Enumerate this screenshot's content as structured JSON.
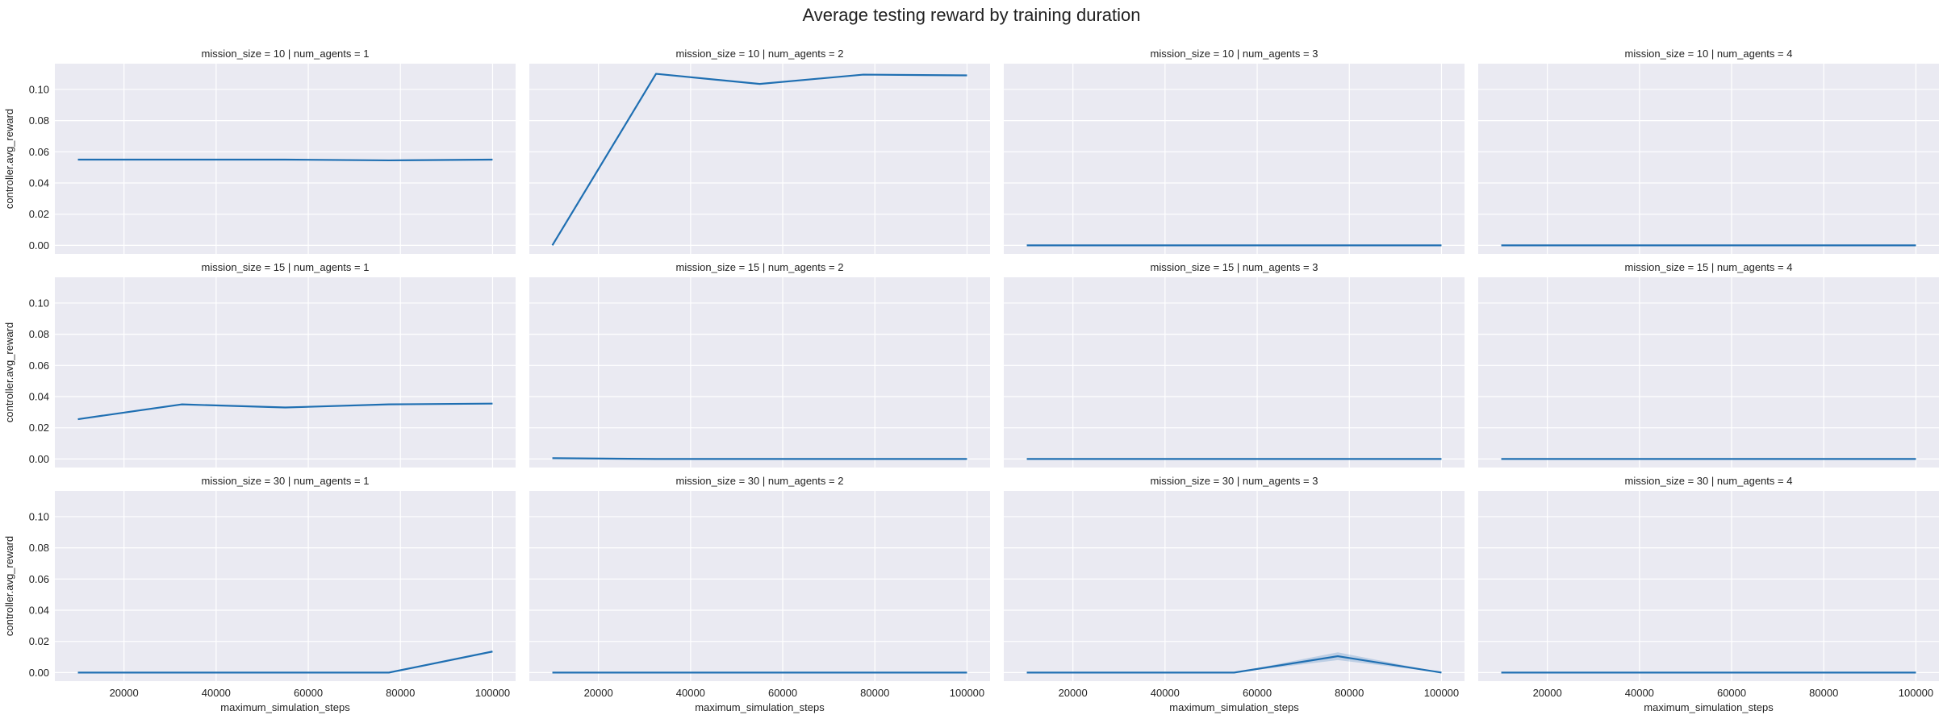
{
  "figure": {
    "title": "Average testing reward by training duration"
  },
  "chart_data": {
    "type": "line",
    "title": "Average testing reward by training duration",
    "xlabel": "maximum_simulation_steps",
    "ylabel": "controller.avg_reward",
    "xlim": [
      5000,
      105000
    ],
    "ylim": [
      -0.0055,
      0.1165
    ],
    "xticks": [
      20000,
      40000,
      60000,
      80000,
      100000
    ],
    "xtick_labels": [
      "20000",
      "40000",
      "60000",
      "80000",
      "100000"
    ],
    "yticks": [
      0.0,
      0.02,
      0.04,
      0.06,
      0.08,
      0.1
    ],
    "ytick_labels": [
      "0.00",
      "0.02",
      "0.04",
      "0.06",
      "0.08",
      "0.10"
    ],
    "grid": true,
    "line_color": "#1f6fb2",
    "background_color": "#eaeaf2",
    "x": [
      10000,
      32500,
      55000,
      77500,
      100000
    ],
    "rows": [
      {
        "mission_size": 10,
        "panels": [
          {
            "title": "mission_size = 10 | num_agents = 1",
            "values": [
              0.055,
              0.055,
              0.055,
              0.0545,
              0.055
            ]
          },
          {
            "title": "mission_size = 10 | num_agents = 2",
            "values": [
              0.0,
              0.11,
              0.1035,
              0.1095,
              0.109
            ]
          },
          {
            "title": "mission_size = 10 | num_agents = 3",
            "values": [
              0.0,
              0.0,
              0.0,
              0.0,
              0.0
            ]
          },
          {
            "title": "mission_size = 10 | num_agents = 4",
            "values": [
              0.0,
              0.0,
              0.0,
              0.0,
              0.0
            ]
          }
        ]
      },
      {
        "mission_size": 15,
        "panels": [
          {
            "title": "mission_size = 15 | num_agents = 1",
            "values": [
              0.0255,
              0.035,
              0.033,
              0.035,
              0.0355
            ]
          },
          {
            "title": "mission_size = 15 | num_agents = 2",
            "values": [
              0.0005,
              0.0,
              0.0,
              0.0,
              0.0
            ]
          },
          {
            "title": "mission_size = 15 | num_agents = 3",
            "values": [
              0.0,
              0.0,
              0.0,
              0.0,
              0.0
            ]
          },
          {
            "title": "mission_size = 15 | num_agents = 4",
            "values": [
              0.0,
              0.0,
              0.0,
              0.0,
              0.0
            ]
          }
        ]
      },
      {
        "mission_size": 30,
        "panels": [
          {
            "title": "mission_size = 30 | num_agents = 1",
            "values": [
              0.0,
              0.0,
              0.0,
              0.0,
              0.0135
            ]
          },
          {
            "title": "mission_size = 30 | num_agents = 2",
            "values": [
              0.0,
              0.0,
              0.0,
              0.0,
              0.0
            ]
          },
          {
            "title": "mission_size = 30 | num_agents = 3",
            "values": [
              0.0,
              0.0,
              0.0,
              0.0105,
              0.0
            ],
            "band_lower": [
              0.0,
              0.0,
              0.0,
              0.008,
              0.0
            ],
            "band_upper": [
              0.0,
              0.0,
              0.0,
              0.013,
              0.0
            ]
          },
          {
            "title": "mission_size = 30 | num_agents = 4",
            "values": [
              0.0,
              0.0,
              0.0,
              0.0,
              0.0
            ]
          }
        ]
      }
    ]
  }
}
